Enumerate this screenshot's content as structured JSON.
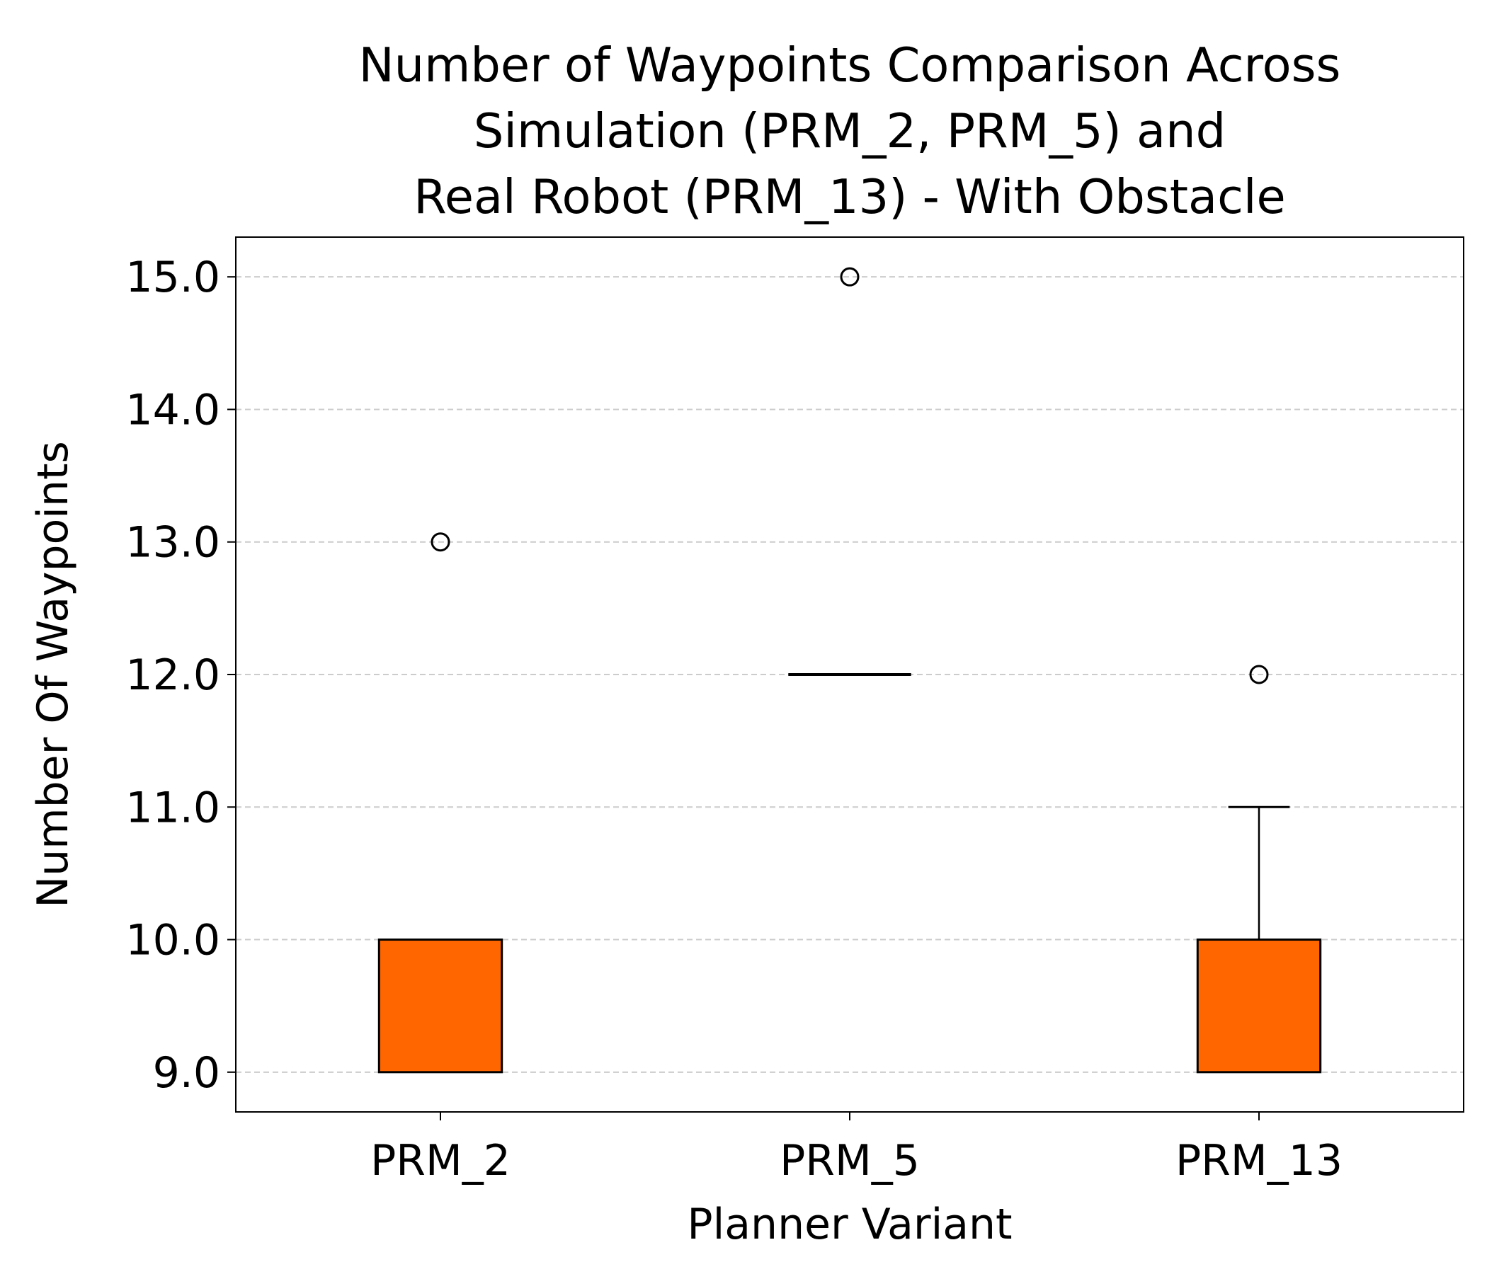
{
  "chart_data": {
    "type": "box",
    "title_lines": [
      "Number of Waypoints Comparison Across",
      "Simulation (PRM_2, PRM_5) and",
      "Real Robot (PRM_13) - With Obstacle"
    ],
    "xlabel": "Planner Variant",
    "ylabel": "Number Of Waypoints",
    "categories": [
      "PRM_2",
      "PRM_5",
      "PRM_13"
    ],
    "ylim": [
      8.7,
      15.3
    ],
    "yticks": [
      9.0,
      10.0,
      11.0,
      12.0,
      13.0,
      14.0,
      15.0
    ],
    "ytick_labels": [
      "9.0",
      "10.0",
      "11.0",
      "12.0",
      "13.0",
      "14.0",
      "15.0"
    ],
    "grid": "y-dashed",
    "box_color": "#ff6600",
    "boxes": [
      {
        "label": "PRM_2",
        "whisker_low": 9,
        "q1": 9,
        "median": 9,
        "q3": 10,
        "whisker_high": 10,
        "outliers": [
          13
        ]
      },
      {
        "label": "PRM_5",
        "whisker_low": 12,
        "q1": 12,
        "median": 12,
        "q3": 12,
        "whisker_high": 12,
        "outliers": [
          15
        ]
      },
      {
        "label": "PRM_13",
        "whisker_low": 9,
        "q1": 9,
        "median": 9,
        "q3": 10,
        "whisker_high": 11,
        "outliers": [
          12
        ]
      }
    ]
  }
}
